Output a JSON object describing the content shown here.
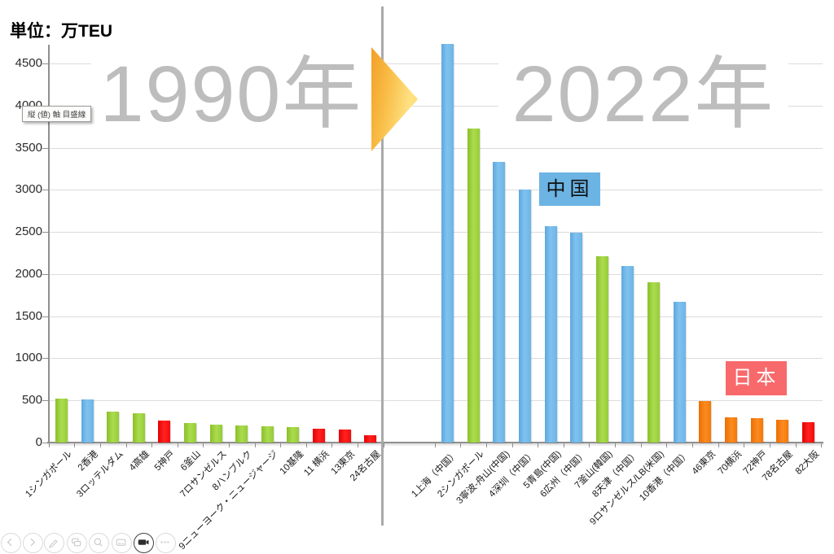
{
  "unit_label": "単位：万TEU",
  "tooltip_text": "縦 (値) 軸 目盛線",
  "annotations": {
    "china": "中国",
    "japan": "日本"
  },
  "colors": {
    "bar_blue": "#6fb5e6",
    "bar_green": "#9ed13f",
    "bar_red": "#ff0000",
    "bar_orange": "#f7790d",
    "china_label_bg": "#6cb4e4",
    "japan_label_bg": "#f8696b",
    "watermark_text": "#bdbdbd",
    "arrow_fill": "#ffc846",
    "gridline": "#dcdcdc"
  },
  "chart_data": [
    {
      "type": "bar",
      "title": "1990年",
      "ylabel": "万TEU",
      "ylim": [
        0,
        4500
      ],
      "y_ticks": [
        "0",
        "500",
        "1000",
        "1500",
        "2000",
        "2500",
        "3000",
        "3500",
        "4000",
        "4500"
      ],
      "grid": true,
      "categories": [
        "1シンガポール",
        "2香港",
        "3ロッテルダム",
        "4高雄",
        "5神戸",
        "6釜山",
        "7ロサンゼルス",
        "8ハンブルク",
        "9ニューヨーク・ニュージャージ",
        "10基隆",
        "11 横浜",
        "13東京",
        "24名古屋"
      ],
      "values": [
        522,
        510,
        370,
        350,
        260,
        235,
        215,
        200,
        190,
        180,
        165,
        155,
        90
      ],
      "bar_colors": [
        "green",
        "blue",
        "green",
        "green",
        "red",
        "green",
        "green",
        "green",
        "green",
        "green",
        "red",
        "red",
        "red"
      ]
    },
    {
      "type": "bar",
      "title": "2022年",
      "ylabel": "万TEU",
      "ylim": [
        0,
        4500
      ],
      "y_ticks": [
        "0",
        "500",
        "1000",
        "1500",
        "2000",
        "2500",
        "3000",
        "3500",
        "4000",
        "4500"
      ],
      "grid": true,
      "categories": [
        "1上海（中国）",
        "2シンガポール",
        "3寧波-舟山(中国)",
        "4深圳（中国）",
        "5青島(中国)",
        "6広州（中国）",
        "7釜山(韓国)",
        "8天津（中国）",
        "9ロサンゼルス/LB(米国)",
        "10香港（中国）",
        "46東京",
        "70横浜",
        "72神戸",
        "78名古屋",
        "82大阪"
      ],
      "values": [
        4730,
        3730,
        3335,
        3005,
        2570,
        2490,
        2210,
        2100,
        1905,
        1670,
        490,
        300,
        290,
        270,
        245
      ],
      "bar_colors": [
        "blue",
        "green",
        "blue",
        "blue",
        "blue",
        "blue",
        "green",
        "blue",
        "green",
        "blue",
        "orange",
        "orange",
        "orange",
        "orange",
        "red"
      ]
    }
  ],
  "toolbar": {
    "icons": [
      "previous-slide-icon",
      "next-slide-icon",
      "pen-icon",
      "see-all-slides-icon",
      "zoom-icon",
      "captions-icon",
      "camera-icon",
      "more-options-icon"
    ]
  }
}
